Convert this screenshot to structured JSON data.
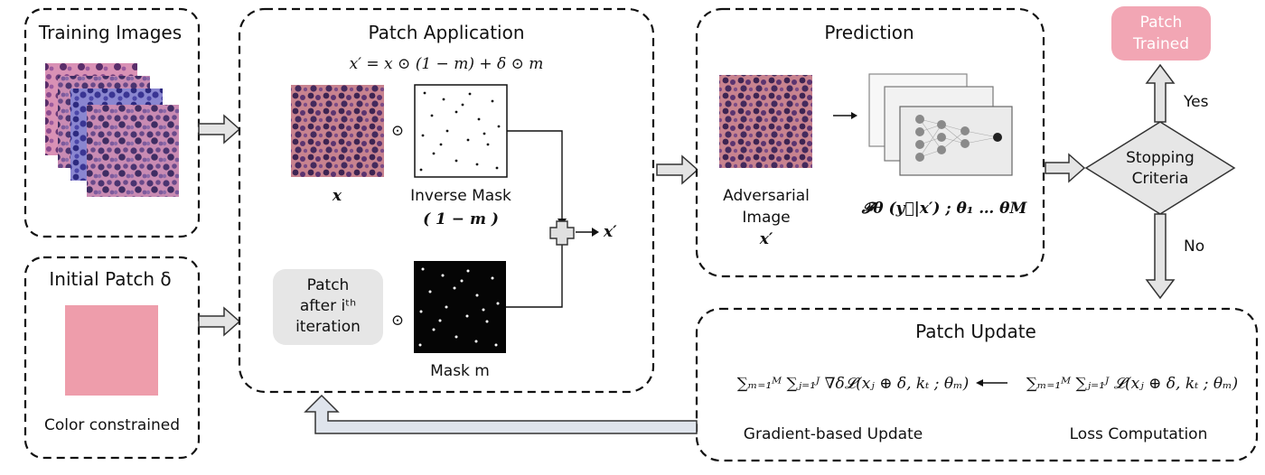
{
  "sections": {
    "training_images": {
      "title": "Training Images"
    },
    "initial_patch": {
      "title": "Initial Patch δ",
      "caption": "Color constrained"
    },
    "patch_application": {
      "title": "Patch Application",
      "formula": "x′ = x ⊙ (1 − m) + δ ⊙ m",
      "x_label": "x",
      "inverse_mask_label": "Inverse Mask",
      "inverse_mask_expr": "( 1 − m )",
      "patch_iter_line1": "Patch",
      "patch_iter_line2": "after iᵗʰ",
      "patch_iter_line3": "iteration",
      "mask_label": "Mask m",
      "odot": "⊙",
      "output_label": "x′"
    },
    "prediction": {
      "title": "Prediction",
      "adv_line1": "Adversarial",
      "adv_line2": "Image",
      "adv_line3": "x′",
      "model_expr": "𝓕θ (y⃗|x′) ; θ₁ … θM"
    },
    "patch_update": {
      "title": "Patch Update",
      "gradient_expr": "∑ₘ₌₁ᴹ ∑ⱼ₌₁ᴶ ∇δ𝓛(xⱼ ⊕ δ, kₜ ; θₘ)",
      "gradient_caption": "Gradient-based Update",
      "loss_expr": "∑ₘ₌₁ᴹ ∑ⱼ₌₁ᴶ 𝓛(xⱼ ⊕ δ, kₜ ; θₘ)",
      "loss_caption": "Loss Computation"
    },
    "decision": {
      "label_line1": "Stopping",
      "label_line2": "Criteria",
      "yes": "Yes",
      "no": "No",
      "done_line1": "Patch",
      "done_line2": "Trained"
    }
  },
  "colors": {
    "patch_pink": "#ee9dab",
    "arrow_fill": "#e4e4e4",
    "feedback_fill": "#dfe4ec",
    "decision_fill": "#e6e6e6",
    "patch_iter_fill": "#e6e6e6",
    "trained_fill": "#f2a6b4"
  }
}
